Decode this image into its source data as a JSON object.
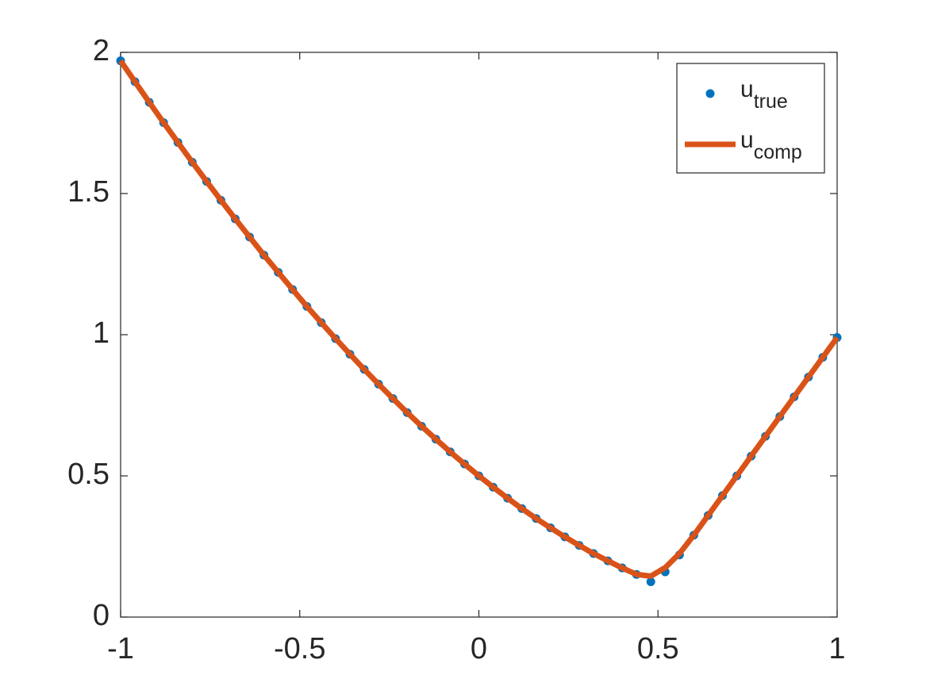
{
  "chart_data": {
    "type": "line",
    "x": [
      -1,
      -0.96,
      -0.92,
      -0.88,
      -0.84,
      -0.8,
      -0.76,
      -0.72,
      -0.68,
      -0.64,
      -0.6,
      -0.56,
      -0.52,
      -0.48,
      -0.44,
      -0.4,
      -0.36,
      -0.32,
      -0.28,
      -0.24,
      -0.2,
      -0.16,
      -0.12,
      -0.08,
      -0.04,
      0,
      0.04,
      0.08,
      0.12,
      0.16,
      0.2,
      0.24,
      0.28,
      0.32,
      0.36,
      0.4,
      0.44,
      0.48,
      0.52,
      0.56,
      0.6,
      0.64,
      0.68,
      0.72,
      0.76,
      0.8,
      0.84,
      0.88,
      0.92,
      0.96,
      1
    ],
    "series": [
      {
        "name": {
          "base": "u",
          "subscript": "true"
        },
        "mode": "markers",
        "color": "#0072BD",
        "values": [
          1.97,
          1.896,
          1.823,
          1.751,
          1.681,
          1.611,
          1.543,
          1.476,
          1.41,
          1.346,
          1.282,
          1.221,
          1.16,
          1.1,
          1.043,
          0.986,
          0.931,
          0.877,
          0.825,
          0.774,
          0.724,
          0.676,
          0.63,
          0.585,
          0.542,
          0.5,
          0.46,
          0.421,
          0.384,
          0.349,
          0.316,
          0.284,
          0.254,
          0.225,
          0.199,
          0.174,
          0.151,
          0.125,
          0.16,
          0.22,
          0.29,
          0.36,
          0.43,
          0.5,
          0.57,
          0.64,
          0.71,
          0.78,
          0.85,
          0.92,
          0.99
        ]
      },
      {
        "name": {
          "base": "u",
          "subscript": "comp"
        },
        "mode": "line",
        "color": "#D95319",
        "values": [
          1.97,
          1.896,
          1.823,
          1.751,
          1.681,
          1.611,
          1.543,
          1.476,
          1.41,
          1.346,
          1.282,
          1.221,
          1.16,
          1.1,
          1.043,
          0.986,
          0.931,
          0.877,
          0.825,
          0.774,
          0.724,
          0.676,
          0.63,
          0.585,
          0.542,
          0.5,
          0.46,
          0.421,
          0.384,
          0.349,
          0.316,
          0.284,
          0.254,
          0.225,
          0.199,
          0.174,
          0.151,
          0.145,
          0.175,
          0.225,
          0.29,
          0.36,
          0.43,
          0.5,
          0.57,
          0.64,
          0.71,
          0.78,
          0.85,
          0.92,
          0.99
        ]
      }
    ],
    "xlim": [
      -1,
      1
    ],
    "xticks": [
      -1,
      -0.5,
      0,
      0.5,
      1
    ],
    "ylim": [
      0,
      2
    ],
    "yticks": [
      0,
      0.5,
      1,
      1.5,
      2
    ],
    "grid": false,
    "legend": "top-right"
  }
}
